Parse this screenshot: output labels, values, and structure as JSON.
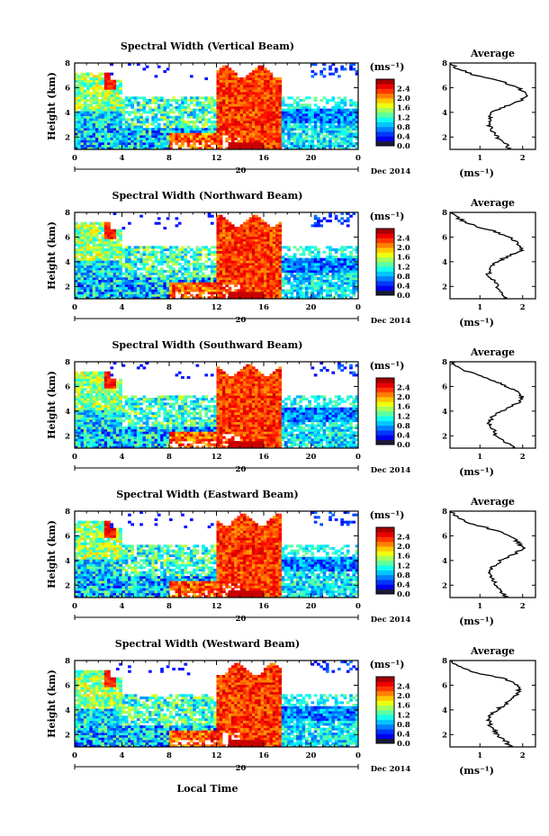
{
  "figure": {
    "date_label": "Dec 2014",
    "day_label": "20",
    "xlabel": "Local Time",
    "ylabel": "Height (km)",
    "unit_label": "(ms⁻¹)",
    "avg_title": "Average",
    "avg_xlabel": "(ms⁻¹)"
  },
  "chart_data": [
    {
      "type": "heatmap",
      "title": "Spectral Width (Vertical Beam)",
      "xlabel": "Local Time",
      "ylabel": "Height (km)",
      "x_ticks": [
        "0",
        "4",
        "8",
        "12",
        "16",
        "20",
        "0"
      ],
      "xlim": [
        0,
        24
      ],
      "y_ticks": [
        "2",
        "4",
        "6",
        "8"
      ],
      "ylim": [
        1,
        8
      ],
      "colorbar": {
        "ticks": [
          "0.0",
          "0.4",
          "0.8",
          "1.2",
          "1.6",
          "2.0",
          "2.4"
        ],
        "range": [
          0,
          2.8
        ]
      },
      "average": {
        "x_ticks": [
          "1",
          "2"
        ],
        "xlim": [
          0.3,
          2.3
        ],
        "y_ticks": [
          "2",
          "4",
          "6",
          "8"
        ],
        "heights": [
          1,
          1.5,
          2,
          2.5,
          3,
          3.5,
          4,
          4.5,
          5,
          5.5,
          6,
          6.5,
          7,
          7.5,
          8
        ],
        "values": [
          1.7,
          1.6,
          1.4,
          1.3,
          1.2,
          1.2,
          1.3,
          1.6,
          2.0,
          2.1,
          1.9,
          1.5,
          0.9,
          0.5,
          0.3
        ]
      }
    },
    {
      "type": "heatmap",
      "title": "Spectral Width (Northward Beam)",
      "xlabel": "Local Time",
      "ylabel": "Height (km)",
      "x_ticks": [
        "0",
        "4",
        "8",
        "12",
        "16",
        "20",
        "0"
      ],
      "xlim": [
        0,
        24
      ],
      "y_ticks": [
        "2",
        "4",
        "6",
        "8"
      ],
      "ylim": [
        1,
        8
      ],
      "colorbar": {
        "ticks": [
          "0.0",
          "0.4",
          "0.8",
          "1.2",
          "1.6",
          "2.0",
          "2.4"
        ],
        "range": [
          0,
          2.8
        ]
      },
      "average": {
        "x_ticks": [
          "1",
          "2"
        ],
        "xlim": [
          0.3,
          2.3
        ],
        "y_ticks": [
          "2",
          "4",
          "6",
          "8"
        ],
        "heights": [
          1,
          1.5,
          2,
          2.5,
          3,
          3.5,
          4,
          4.5,
          5,
          5.5,
          6,
          6.5,
          7,
          7.5,
          8
        ],
        "values": [
          1.6,
          1.5,
          1.4,
          1.3,
          1.2,
          1.2,
          1.4,
          1.7,
          2.0,
          1.9,
          1.7,
          1.3,
          0.8,
          0.5,
          0.3
        ]
      }
    },
    {
      "type": "heatmap",
      "title": "Spectral Width (Southward Beam)",
      "xlabel": "Local Time",
      "ylabel": "Height (km)",
      "x_ticks": [
        "0",
        "4",
        "8",
        "12",
        "16",
        "20",
        "0"
      ],
      "xlim": [
        0,
        24
      ],
      "y_ticks": [
        "2",
        "4",
        "6",
        "8"
      ],
      "ylim": [
        1,
        8
      ],
      "colorbar": {
        "ticks": [
          "0.0",
          "0.4",
          "0.8",
          "1.2",
          "1.6",
          "2.0",
          "2.4"
        ],
        "range": [
          0,
          2.8
        ]
      },
      "average": {
        "x_ticks": [
          "1",
          "2"
        ],
        "xlim": [
          0.3,
          2.3
        ],
        "y_ticks": [
          "2",
          "4",
          "6",
          "8"
        ],
        "heights": [
          1,
          1.5,
          2,
          2.5,
          3,
          3.5,
          4,
          4.5,
          5,
          5.5,
          6,
          6.5,
          7,
          7.5,
          8
        ],
        "values": [
          1.8,
          1.6,
          1.4,
          1.3,
          1.2,
          1.3,
          1.5,
          1.8,
          2.0,
          1.9,
          1.6,
          1.3,
          0.9,
          0.5,
          0.3
        ]
      }
    },
    {
      "type": "heatmap",
      "title": "Spectral Width (Eastward Beam)",
      "xlabel": "Local Time",
      "ylabel": "Height (km)",
      "x_ticks": [
        "0",
        "4",
        "8",
        "12",
        "16",
        "20",
        "0"
      ],
      "xlim": [
        0,
        24
      ],
      "y_ticks": [
        "2",
        "4",
        "6",
        "8"
      ],
      "ylim": [
        1,
        8
      ],
      "colorbar": {
        "ticks": [
          "0.0",
          "0.4",
          "0.8",
          "1.2",
          "1.6",
          "2.0",
          "2.4"
        ],
        "range": [
          0,
          2.8
        ]
      },
      "average": {
        "x_ticks": [
          "1",
          "2"
        ],
        "xlim": [
          0.3,
          2.3
        ],
        "y_ticks": [
          "2",
          "4",
          "6",
          "8"
        ],
        "heights": [
          1,
          1.5,
          2,
          2.5,
          3,
          3.5,
          4,
          4.5,
          5,
          5.5,
          6,
          6.5,
          7,
          7.5,
          8
        ],
        "values": [
          1.6,
          1.5,
          1.4,
          1.3,
          1.2,
          1.3,
          1.5,
          1.8,
          2.0,
          1.9,
          1.7,
          1.3,
          0.8,
          0.5,
          0.3
        ]
      }
    },
    {
      "type": "heatmap",
      "title": "Spectral Width (Westward Beam)",
      "xlabel": "Local Time",
      "ylabel": "Height (km)",
      "x_ticks": [
        "0",
        "4",
        "8",
        "12",
        "16",
        "20",
        "0"
      ],
      "xlim": [
        0,
        24
      ],
      "y_ticks": [
        "2",
        "4",
        "6",
        "8"
      ],
      "ylim": [
        1,
        8
      ],
      "colorbar": {
        "ticks": [
          "0.0",
          "0.4",
          "0.8",
          "1.2",
          "1.6",
          "2.0",
          "2.4"
        ],
        "range": [
          0,
          2.8
        ]
      },
      "average": {
        "x_ticks": [
          "1",
          "2"
        ],
        "xlim": [
          0.3,
          2.3
        ],
        "y_ticks": [
          "2",
          "4",
          "6",
          "8"
        ],
        "heights": [
          1,
          1.5,
          2,
          2.5,
          3,
          3.5,
          4,
          4.5,
          5,
          5.5,
          6,
          6.5,
          7,
          7.5,
          8
        ],
        "values": [
          1.7,
          1.6,
          1.4,
          1.3,
          1.2,
          1.2,
          1.4,
          1.6,
          1.8,
          1.9,
          1.9,
          1.6,
          0.9,
          0.5,
          0.3
        ]
      }
    }
  ]
}
